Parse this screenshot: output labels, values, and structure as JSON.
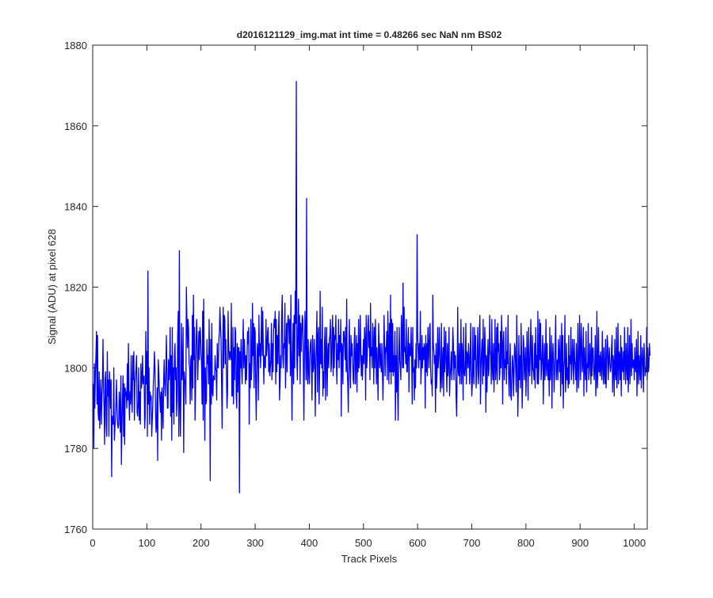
{
  "chart_data": {
    "type": "line",
    "title": "d2016121129_img.mat int time = 0.48266 sec  NaN nm BS02",
    "xlabel": "Track Pixels",
    "ylabel": "Signal (ADU) at pixel 628",
    "xlim": [
      0,
      1024
    ],
    "ylim": [
      1760,
      1880
    ],
    "xticks": [
      0,
      100,
      200,
      300,
      400,
      500,
      600,
      700,
      800,
      900,
      1000
    ],
    "yticks": [
      1760,
      1780,
      1800,
      1820,
      1840,
      1860,
      1880
    ],
    "grid": false,
    "legend": "none",
    "series": [
      {
        "color": "#0000ff",
        "x_start": 1,
        "x_step": 1,
        "values": [
          1796,
          1780,
          1801,
          1790,
          1799,
          1803,
          1809,
          1791,
          1808,
          1789,
          1787,
          1799,
          1785,
          1791,
          1797,
          1786,
          1793,
          1796,
          1807,
          1795,
          1790,
          1781,
          1797,
          1799,
          1786,
          1783,
          1804,
          1793,
          1797,
          1783,
          1799,
          1796,
          1790,
          1797,
          1773,
          1788,
          1786,
          1786,
          1800,
          1782,
          1785,
          1787,
          1791,
          1797,
          1790,
          1786,
          1785,
          1786,
          1794,
          1790,
          1784,
          1798,
          1776,
          1785,
          1792,
          1798,
          1783,
          1796,
          1781,
          1795,
          1793,
          1794,
          1790,
          1801,
          1792,
          1806,
          1792,
          1787,
          1794,
          1791,
          1803,
          1793,
          1789,
          1803,
          1797,
          1804,
          1787,
          1796,
          1798,
          1800,
          1803,
          1789,
          1788,
          1791,
          1800,
          1787,
          1794,
          1786,
          1801,
          1795,
          1797,
          1803,
          1796,
          1797,
          1798,
          1785,
          1788,
          1809,
          1796,
          1804,
          1783,
          1824,
          1791,
          1800,
          1786,
          1794,
          1792,
          1793,
          1783,
          1787,
          1791,
          1796,
          1799,
          1804,
          1800,
          1790,
          1784,
          1786,
          1795,
          1777,
          1802,
          1799,
          1795,
          1792,
          1789,
          1794,
          1782,
          1795,
          1791,
          1785,
          1797,
          1802,
          1796,
          1793,
          1798,
          1808,
          1800,
          1790,
          1790,
          1802,
          1797,
          1800,
          1810,
          1788,
          1803,
          1782,
          1810,
          1789,
          1800,
          1786,
          1803,
          1806,
          1797,
          1800,
          1788,
          1792,
          1808,
          1814,
          1783,
          1829,
          1791,
          1783,
          1795,
          1811,
          1797,
          1800,
          1810,
          1779,
          1799,
          1797,
          1796,
          1791,
          1820,
          1812,
          1805,
          1812,
          1810,
          1801,
          1800,
          1791,
          1802,
          1803,
          1792,
          1813,
          1795,
          1818,
          1802,
          1810,
          1787,
          1795,
          1807,
          1812,
          1806,
          1797,
          1803,
          1809,
          1802,
          1810,
          1809,
          1804,
          1801,
          1791,
          1814,
          1787,
          1817,
          1802,
          1782,
          1800,
          1791,
          1792,
          1807,
          1801,
          1803,
          1796,
          1812,
          1800,
          1772,
          1807,
          1791,
          1811,
          1794,
          1793,
          1798,
          1797,
          1797,
          1803,
          1800,
          1799,
          1792,
          1806,
          1800,
          1800,
          1807,
          1809,
          1815,
          1810,
          1807,
          1796,
          1785,
          1803,
          1815,
          1800,
          1813,
          1812,
          1801,
          1807,
          1798,
          1790,
          1794,
          1814,
          1806,
          1802,
          1804,
          1803,
          1802,
          1816,
          1793,
          1793,
          1810,
          1791,
          1805,
          1797,
          1810,
          1809,
          1793,
          1790,
          1806,
          1794,
          1805,
          1805,
          1769,
          1804,
          1800,
          1807,
          1800,
          1796,
          1805,
          1812,
          1800,
          1807,
          1803,
          1796,
          1803,
          1797,
          1803,
          1809,
          1806,
          1810,
          1786,
          1801,
          1795,
          1812,
          1797,
          1801,
          1816,
          1803,
          1811,
          1795,
          1810,
          1809,
          1796,
          1787,
          1800,
          1806,
          1804,
          1792,
          1813,
          1803,
          1806,
          1800,
          1808,
          1815,
          1803,
          1814,
          1805,
          1796,
          1803,
          1801,
          1800,
          1812,
          1803,
          1805,
          1809,
          1810,
          1799,
          1806,
          1798,
          1800,
          1802,
          1811,
          1797,
          1806,
          1799,
          1809,
          1812,
          1810,
          1814,
          1796,
          1812,
          1799,
          1808,
          1801,
          1809,
          1814,
          1792,
          1796,
          1803,
          1800,
          1813,
          1818,
          1803,
          1800,
          1806,
          1805,
          1816,
          1795,
          1803,
          1811,
          1799,
          1811,
          1813,
          1811,
          1806,
          1812,
          1798,
          1818,
          1801,
          1787,
          1803,
          1811,
          1796,
          1813,
          1800,
          1819,
          1811,
          1871,
          1802,
          1797,
          1809,
          1817,
          1803,
          1813,
          1796,
          1811,
          1804,
          1809,
          1813,
          1812,
          1800,
          1787,
          1803,
          1814,
          1806,
          1797,
          1842,
          1800,
          1796,
          1807,
          1799,
          1796,
          1803,
          1806,
          1807,
          1800,
          1792,
          1808,
          1799,
          1800,
          1807,
          1803,
          1788,
          1800,
          1806,
          1814,
          1794,
          1808,
          1810,
          1791,
          1799,
          1819,
          1801,
          1807,
          1800,
          1815,
          1793,
          1799,
          1795,
          1806,
          1810,
          1792,
          1804,
          1810,
          1793,
          1803,
          1806,
          1800,
          1807,
          1808,
          1812,
          1799,
          1801,
          1809,
          1813,
          1798,
          1810,
          1800,
          1808,
          1807,
          1813,
          1801,
          1796,
          1806,
          1802,
          1812,
          1800,
          1808,
          1804,
          1812,
          1788,
          1806,
          1805,
          1796,
          1809,
          1809,
          1806,
          1802,
          1810,
          1799,
          1817,
          1800,
          1796,
          1789,
          1804,
          1812,
          1800,
          1795,
          1808,
          1803,
          1806,
          1802,
          1797,
          1796,
          1807,
          1810,
          1796,
          1802,
          1808,
          1794,
          1806,
          1799,
          1812,
          1800,
          1802,
          1813,
          1806,
          1798,
          1803,
          1797,
          1802,
          1807,
          1801,
          1810,
          1807,
          1792,
          1813,
          1800,
          1803,
          1810,
          1813,
          1805,
          1809,
          1797,
          1816,
          1803,
          1805,
          1800,
          1811,
          1806,
          1796,
          1810,
          1800,
          1812,
          1804,
          1796,
          1805,
          1799,
          1792,
          1811,
          1805,
          1800,
          1806,
          1801,
          1799,
          1806,
          1799,
          1792,
          1800,
          1813,
          1806,
          1798,
          1805,
          1804,
          1809,
          1797,
          1814,
          1806,
          1796,
          1811,
          1799,
          1818,
          1796,
          1812,
          1799,
          1811,
          1798,
          1803,
          1799,
          1809,
          1787,
          1803,
          1794,
          1810,
          1795,
          1787,
          1802,
          1810,
          1802,
          1800,
          1797,
          1813,
          1808,
          1800,
          1821,
          1800,
          1815,
          1804,
          1805,
          1801,
          1812,
          1799,
          1799,
          1806,
          1810,
          1794,
          1806,
          1803,
          1803,
          1810,
          1802,
          1791,
          1810,
          1799,
          1800,
          1792,
          1802,
          1795,
          1806,
          1800,
          1833,
          1809,
          1804,
          1800,
          1806,
          1802,
          1814,
          1796,
          1800,
          1808,
          1800,
          1805,
          1802,
          1806,
          1805,
          1790,
          1808,
          1799,
          1806,
          1798,
          1810,
          1805,
          1800,
          1810,
          1811,
          1800,
          1796,
          1797,
          1793,
          1818,
          1806,
          1804,
          1801,
          1803,
          1789,
          1806,
          1795,
          1799,
          1810,
          1800,
          1803,
          1810,
          1804,
          1794,
          1798,
          1811,
          1795,
          1801,
          1805,
          1793,
          1810,
          1799,
          1803,
          1809,
          1800,
          1794,
          1806,
          1798,
          1801,
          1810,
          1793,
          1798,
          1800,
          1804,
          1797,
          1801,
          1810,
          1806,
          1797,
          1804,
          1800,
          1803,
          1793,
          1788,
          1799,
          1815,
          1799,
          1798,
          1806,
          1796,
          1801,
          1812,
          1796,
          1806,
          1803,
          1792,
          1810,
          1799,
          1798,
          1800,
          1811,
          1796,
          1804,
          1803,
          1800,
          1806,
          1803,
          1796,
          1802,
          1811,
          1799,
          1793,
          1796,
          1810,
          1799,
          1796,
          1810,
          1802,
          1808,
          1795,
          1798,
          1803,
          1810,
          1796,
          1799,
          1809,
          1813,
          1791,
          1800,
          1804,
          1807,
          1796,
          1812,
          1798,
          1801,
          1810,
          1805,
          1789,
          1803,
          1794,
          1802,
          1807,
          1798,
          1800,
          1813,
          1804,
          1803,
          1796,
          1812,
          1800,
          1797,
          1806,
          1794,
          1801,
          1812,
          1797,
          1800,
          1810,
          1796,
          1811,
          1804,
          1806,
          1797,
          1799,
          1809,
          1800,
          1813,
          1808,
          1791,
          1806,
          1809,
          1797,
          1802,
          1800,
          1810,
          1796,
          1804,
          1801,
          1813,
          1798,
          1793,
          1800,
          1806,
          1793,
          1792,
          1798,
          1803,
          1801,
          1793,
          1799,
          1806,
          1805,
          1800,
          1794,
          1813,
          1803,
          1788,
          1795,
          1808,
          1797,
          1803,
          1795,
          1811,
          1803,
          1790,
          1796,
          1808,
          1806,
          1797,
          1801,
          1805,
          1793,
          1800,
          1809,
          1802,
          1792,
          1810,
          1800,
          1798,
          1804,
          1812,
          1802,
          1796,
          1808,
          1800,
          1799,
          1797,
          1806,
          1795,
          1810,
          1800,
          1803,
          1796,
          1814,
          1796,
          1800,
          1812,
          1802,
          1811,
          1797,
          1800,
          1804,
          1808,
          1791,
          1800,
          1806,
          1797,
          1801,
          1812,
          1798,
          1806,
          1800,
          1797,
          1802,
          1793,
          1810,
          1797,
          1801,
          1808,
          1790,
          1802,
          1806,
          1801,
          1794,
          1799,
          1806,
          1813,
          1797,
          1801,
          1802,
          1797,
          1807,
          1803,
          1799,
          1808,
          1793,
          1800,
          1811,
          1796,
          1808,
          1790,
          1800,
          1802,
          1813,
          1794,
          1798,
          1806,
          1797,
          1800,
          1795,
          1808,
          1796,
          1803,
          1801,
          1810,
          1797,
          1800,
          1807,
          1803,
          1796,
          1807,
          1802,
          1800,
          1797,
          1806,
          1794,
          1801,
          1811,
          1795,
          1798,
          1813,
          1804,
          1797,
          1811,
          1806,
          1799,
          1801,
          1810,
          1793,
          1805,
          1800,
          1797,
          1809,
          1794,
          1801,
          1800,
          1811,
          1797,
          1799,
          1806,
          1802,
          1796,
          1810,
          1798,
          1804,
          1805,
          1800,
          1797,
          1800,
          1808,
          1793,
          1798,
          1814,
          1795,
          1800,
          1810,
          1799,
          1803,
          1798,
          1804,
          1800,
          1797,
          1809,
          1801,
          1796,
          1805,
          1799,
          1796,
          1807,
          1795,
          1800,
          1808,
          1806,
          1797,
          1802,
          1805,
          1801,
          1799,
          1800,
          1805,
          1808,
          1794,
          1803,
          1801,
          1793,
          1807,
          1799,
          1797,
          1810,
          1795,
          1800,
          1811,
          1796,
          1804,
          1803,
          1797,
          1808,
          1793,
          1805,
          1800,
          1799,
          1804,
          1797,
          1810,
          1802,
          1796,
          1806,
          1800,
          1797,
          1810,
          1794,
          1800,
          1808,
          1796,
          1801,
          1812,
          1798,
          1806,
          1800,
          1801,
          1802,
          1797,
          1805,
          1800,
          1799,
          1807,
          1793,
          1801,
          1809,
          1796,
          1803,
          1800,
          1797,
          1808,
          1795,
          1801,
          1805,
          1801,
          1794,
          1806,
          1803,
          1798,
          1800,
          1799,
          1810,
          1797,
          1805,
          1799,
          1800,
          1806,
          1803
        ]
      }
    ]
  }
}
